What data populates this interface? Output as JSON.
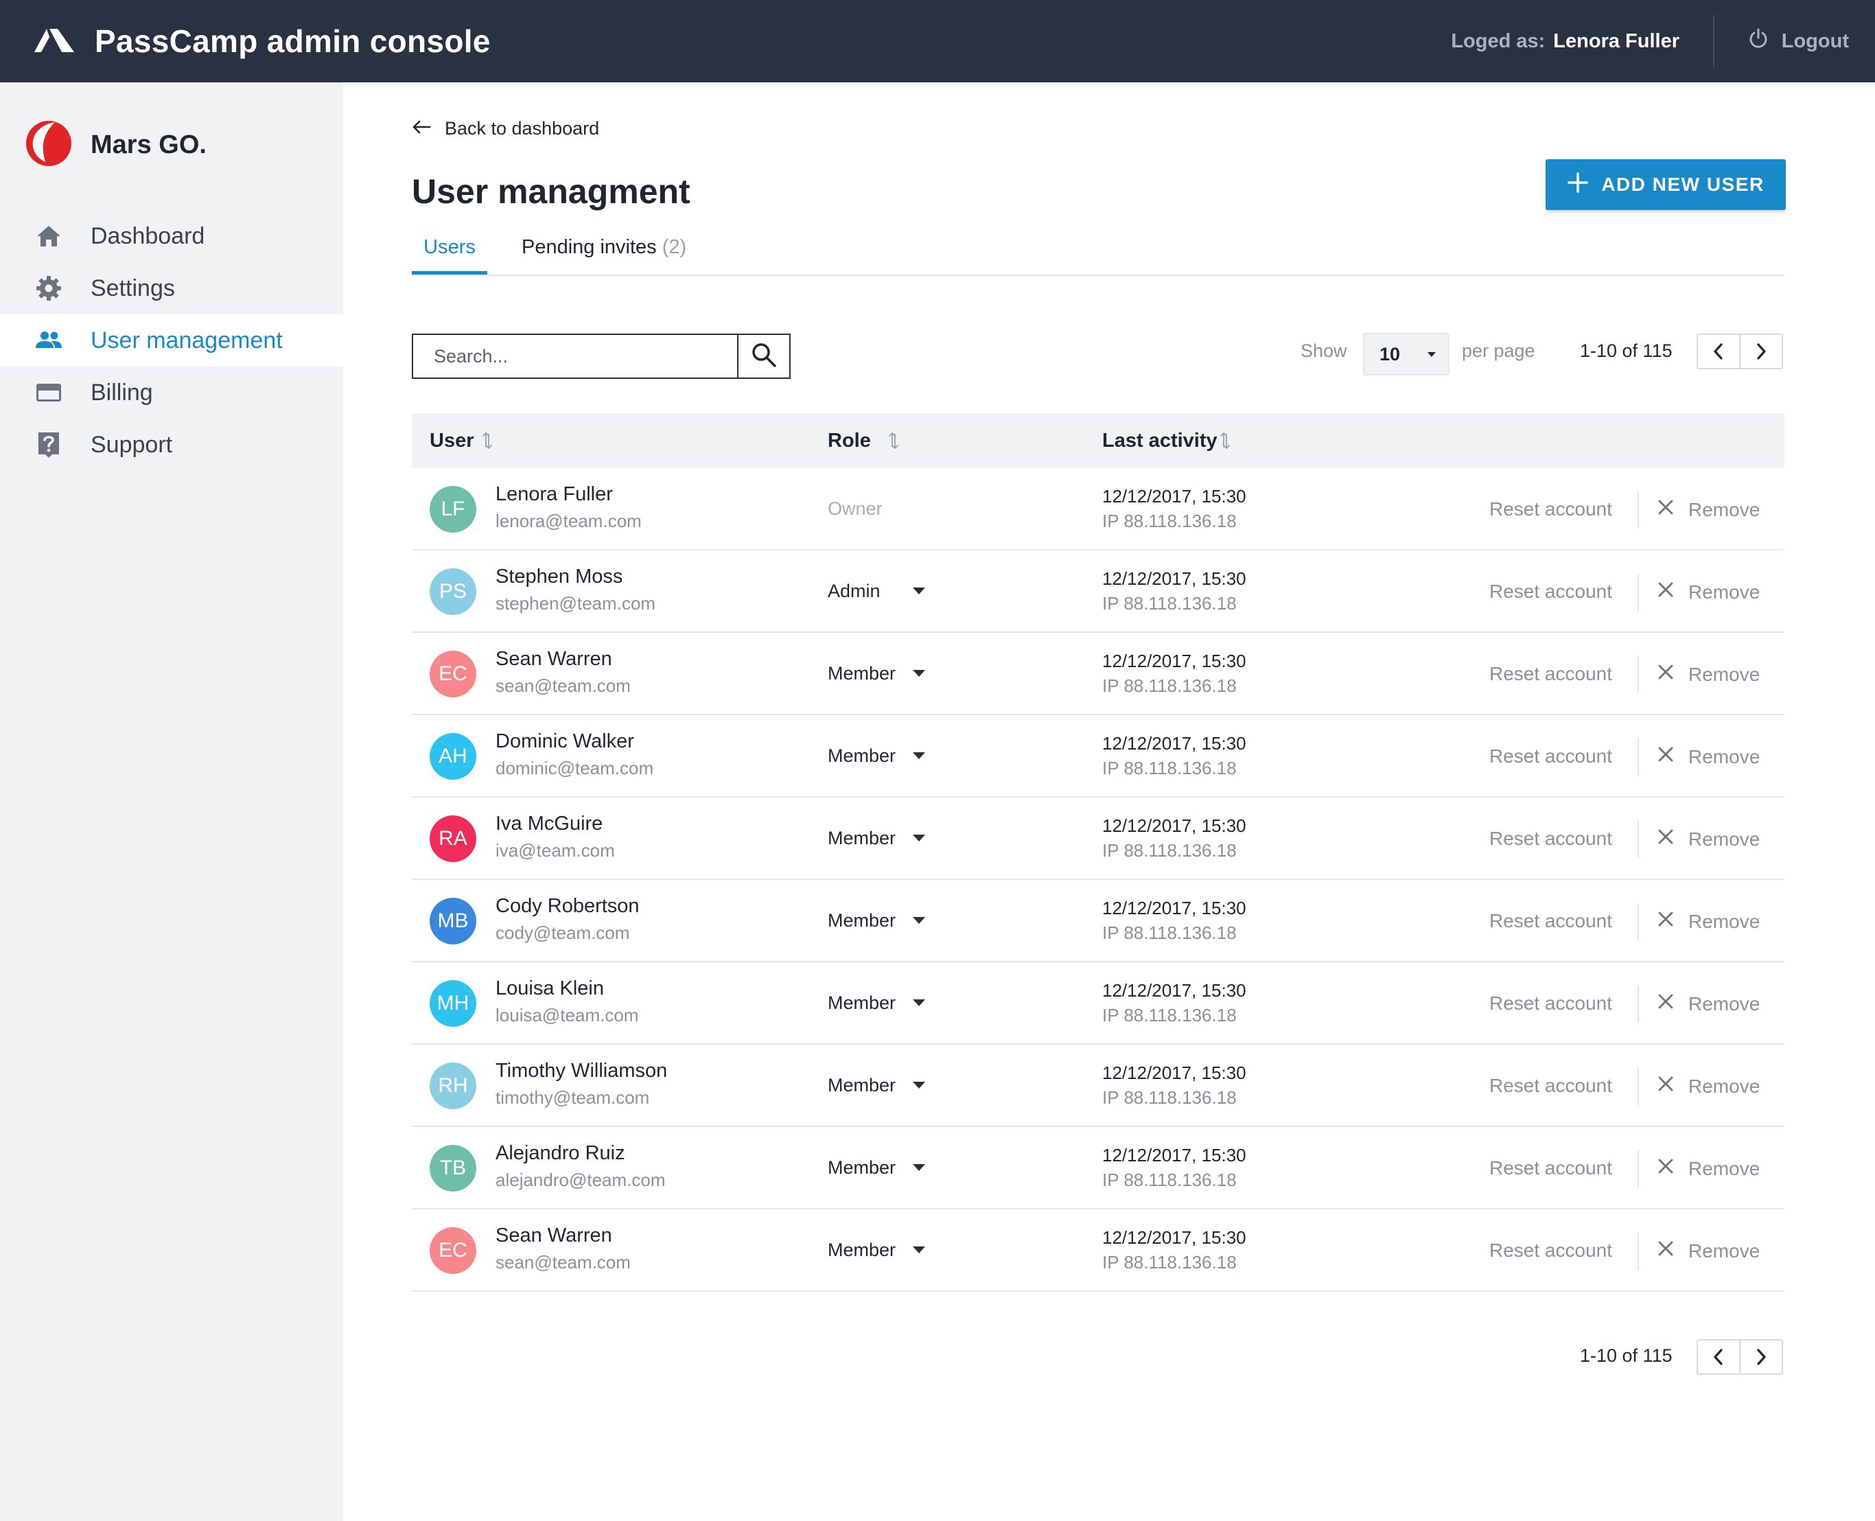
{
  "app": {
    "title": "PassCamp admin console",
    "logged_label": "Loged as:",
    "logged_user": "Lenora Fuller",
    "logout_label": "Logout"
  },
  "sidebar": {
    "org_name": "Mars GO.",
    "items": [
      {
        "label": "Dashboard",
        "icon": "home-icon",
        "active": false
      },
      {
        "label": "Settings",
        "icon": "gear-icon",
        "active": false
      },
      {
        "label": "User management",
        "icon": "users-icon",
        "active": true
      },
      {
        "label": "Billing",
        "icon": "credit-card-icon",
        "active": false
      },
      {
        "label": "Support",
        "icon": "help-icon",
        "active": false
      }
    ]
  },
  "main": {
    "back_label": "Back to dashboard",
    "title": "User managment",
    "add_button": "ADD NEW USER",
    "tabs": [
      {
        "label": "Users",
        "active": true
      },
      {
        "label": "Pending invites",
        "count": "(2)",
        "active": false
      }
    ],
    "search_placeholder": "Search...",
    "show_label": "Show",
    "per_page_value": "10",
    "per_page_label": "per page",
    "range_label": "1-10 of 115"
  },
  "table": {
    "columns": [
      "User",
      "Role",
      "Last activity"
    ],
    "reset_label": "Reset account",
    "remove_label": "Remove",
    "rows": [
      {
        "initials": "LF",
        "avatar_color": "#6fbfa8",
        "name": "Lenora Fuller",
        "email": "lenora@team.com",
        "role": "Owner",
        "editable": false,
        "date": "12/12/2017, 15:30",
        "ip": "IP 88.118.136.18"
      },
      {
        "initials": "PS",
        "avatar_color": "#8bcde3",
        "name": "Stephen Moss",
        "email": "stephen@team.com",
        "role": "Admin",
        "editable": true,
        "date": "12/12/2017, 15:30",
        "ip": "IP 88.118.136.18"
      },
      {
        "initials": "EC",
        "avatar_color": "#f7878b",
        "name": "Sean Warren",
        "email": "sean@team.com",
        "role": "Member",
        "editable": true,
        "date": "12/12/2017, 15:30",
        "ip": "IP 88.118.136.18"
      },
      {
        "initials": "AH",
        "avatar_color": "#2dc2ef",
        "name": "Dominic Walker",
        "email": "dominic@team.com",
        "role": "Member",
        "editable": true,
        "date": "12/12/2017, 15:30",
        "ip": "IP 88.118.136.18"
      },
      {
        "initials": "RA",
        "avatar_color": "#f02d5a",
        "name": "Iva McGuire",
        "email": "iva@team.com",
        "role": "Member",
        "editable": true,
        "date": "12/12/2017, 15:30",
        "ip": "IP 88.118.136.18"
      },
      {
        "initials": "MB",
        "avatar_color": "#3a87e0",
        "name": "Cody Robertson",
        "email": "cody@team.com",
        "role": "Member",
        "editable": true,
        "date": "12/12/2017, 15:30",
        "ip": "IP 88.118.136.18"
      },
      {
        "initials": "MH",
        "avatar_color": "#2dc2ef",
        "name": "Louisa Klein",
        "email": "louisa@team.com",
        "role": "Member",
        "editable": true,
        "date": "12/12/2017, 15:30",
        "ip": "IP 88.118.136.18"
      },
      {
        "initials": "RH",
        "avatar_color": "#8bcde3",
        "name": "Timothy Williamson",
        "email": "timothy@team.com",
        "role": "Member",
        "editable": true,
        "date": "12/12/2017, 15:30",
        "ip": "IP 88.118.136.18"
      },
      {
        "initials": "TB",
        "avatar_color": "#6fbfa8",
        "name": "Alejandro Ruiz",
        "email": "alejandro@team.com",
        "role": "Member",
        "editable": true,
        "date": "12/12/2017, 15:30",
        "ip": "IP 88.118.136.18"
      },
      {
        "initials": "EC",
        "avatar_color": "#f7878b",
        "name": "Sean Warren",
        "email": "sean@team.com",
        "role": "Member",
        "editable": true,
        "date": "12/12/2017, 15:30",
        "ip": "IP 88.118.136.18"
      }
    ]
  },
  "colors": {
    "topbar": "#293243",
    "accent": "#1989c9",
    "sidebar_bg": "#f1f2f4"
  }
}
